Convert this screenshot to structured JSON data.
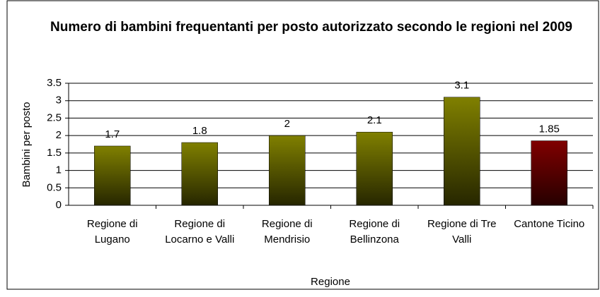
{
  "chart_data": {
    "type": "bar",
    "title": "Numero di bambini frequentanti per posto autorizzato secondo le regioni nel 2009",
    "x_label": "Regione",
    "y_label": "Bambini per posto",
    "categories": [
      "Regione di Lugano",
      "Regione di Locarno e Valli",
      "Regione di Mendrisio",
      "Regione di Bellinzona",
      "Regione di Tre Valli",
      "Cantone Ticino"
    ],
    "values": [
      1.7,
      1.8,
      2,
      2.1,
      3.1,
      1.85
    ],
    "colors": [
      "#808000",
      "#808000",
      "#808000",
      "#808000",
      "#808000",
      "#800000"
    ],
    "ylim": [
      0,
      3.5
    ],
    "yticks": [
      0,
      {
        "value": 0.5,
        "label": "0.5"
      },
      1,
      1.5,
      2,
      2.5,
      3,
      3.5
    ],
    "grid": true
  }
}
